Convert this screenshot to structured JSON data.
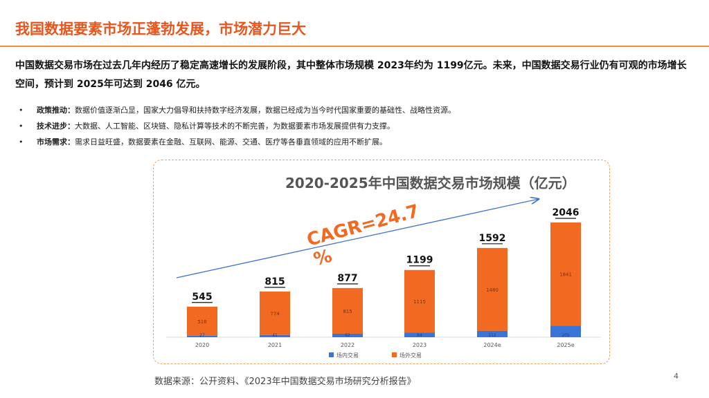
{
  "header": {
    "title": "我国数据要素市场正蓬勃发展，市场潜力巨大"
  },
  "intro": "中国数据交易市场在过去几年内经历了稳定高速增长的发展阶段，其中整体市场规模 2023年约为 1199亿元。未来，中国数据交易行业仍有可观的市场增长空间，预计到 2025年可达到 2046 亿元。",
  "bullets": [
    {
      "marker": "•",
      "label": "政策推动：",
      "text": "数据价值逐渐凸显，国家大力倡导和扶持数字经济发展，数据已经成为当今时代国家重要的基础性、战略性资源。"
    },
    {
      "marker": "•",
      "label": "技术进步：",
      "text": "大数据、人工智能、区块链、隐私计算等技术的不断完善，为数据要素市场发展提供有力支撑。"
    },
    {
      "marker": "•",
      "label": "市场需求：",
      "text": "需求日益旺盛，数据要素在金融、互联网、能源、交通、医疗等各垂直领域的应用不断扩展。"
    }
  ],
  "chart_data": {
    "type": "bar",
    "stacked": true,
    "title": "2020-2025年中国数据交易市场规模（亿元）",
    "categories": [
      "2020",
      "2021",
      "2022",
      "2023",
      "2024e",
      "2025e"
    ],
    "series": [
      {
        "name": "场内交易",
        "color": "#3a74d6",
        "values": [
          27,
          41,
          62,
          84,
          112,
          205
        ]
      },
      {
        "name": "场外交易",
        "color": "#f26a21",
        "values": [
          518,
          774,
          815,
          1115,
          1480,
          1841
        ]
      }
    ],
    "totals": [
      "545",
      "815",
      "877",
      "1199",
      "1592",
      "2046"
    ],
    "annotation": "CAGR=24.7%",
    "ylim": [
      0,
      2100
    ],
    "legend_position": "bottom-left"
  },
  "footer": {
    "source": "数据来源：公开资料、《2023年中国数据交易市场研究分析报告》",
    "page": "4"
  },
  "colors": {
    "accent": "#e8561d",
    "bar_outside": "#f26a21",
    "bar_inside": "#3a74d6",
    "arrow": "#3b6fd1"
  }
}
